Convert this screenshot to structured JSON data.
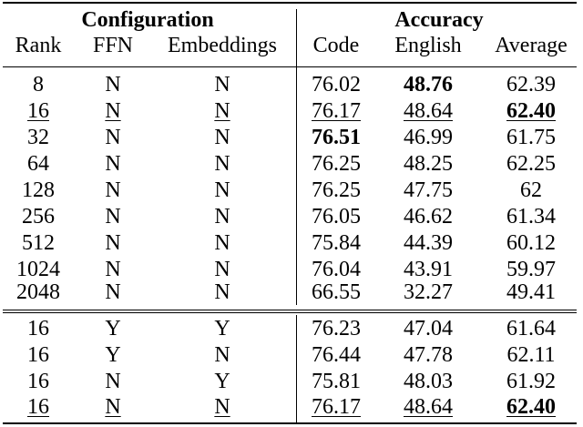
{
  "table": {
    "group_headers": {
      "configuration": "Configuration",
      "accuracy": "Accuracy"
    },
    "columns": [
      "Rank",
      "FFN",
      "Embeddings",
      "Code",
      "English",
      "Average"
    ],
    "section1": [
      {
        "rank": "8",
        "ffn": "N",
        "emb": "N",
        "code": "76.02",
        "english": "48.76",
        "average": "62.39"
      },
      {
        "rank": "16",
        "ffn": "N",
        "emb": "N",
        "code": "76.17",
        "english": "48.64",
        "average": "62.40"
      },
      {
        "rank": "32",
        "ffn": "N",
        "emb": "N",
        "code": "76.51",
        "english": "46.99",
        "average": "61.75"
      },
      {
        "rank": "64",
        "ffn": "N",
        "emb": "N",
        "code": "76.25",
        "english": "48.25",
        "average": "62.25"
      },
      {
        "rank": "128",
        "ffn": "N",
        "emb": "N",
        "code": "76.25",
        "english": "47.75",
        "average": "62"
      },
      {
        "rank": "256",
        "ffn": "N",
        "emb": "N",
        "code": "76.05",
        "english": "46.62",
        "average": "61.34"
      },
      {
        "rank": "512",
        "ffn": "N",
        "emb": "N",
        "code": "75.84",
        "english": "44.39",
        "average": "60.12"
      },
      {
        "rank": "1024",
        "ffn": "N",
        "emb": "N",
        "code": "76.04",
        "english": "43.91",
        "average": "59.97"
      },
      {
        "rank": "2048",
        "ffn": "N",
        "emb": "N",
        "code": "66.55",
        "english": "32.27",
        "average": "49.41"
      }
    ],
    "section2": [
      {
        "rank": "16",
        "ffn": "Y",
        "emb": "Y",
        "code": "76.23",
        "english": "47.04",
        "average": "61.64"
      },
      {
        "rank": "16",
        "ffn": "Y",
        "emb": "N",
        "code": "76.44",
        "english": "47.78",
        "average": "62.11"
      },
      {
        "rank": "16",
        "ffn": "N",
        "emb": "Y",
        "code": "75.81",
        "english": "48.03",
        "average": "61.92"
      },
      {
        "rank": "16",
        "ffn": "N",
        "emb": "N",
        "code": "76.17",
        "english": "48.64",
        "average": "62.40"
      }
    ],
    "emphasis": {
      "bold": [
        "section1.0.english",
        "section1.1.average",
        "section1.2.code",
        "section2.3.average"
      ],
      "underline_rows": [
        "section1.1",
        "section2.3"
      ]
    }
  }
}
